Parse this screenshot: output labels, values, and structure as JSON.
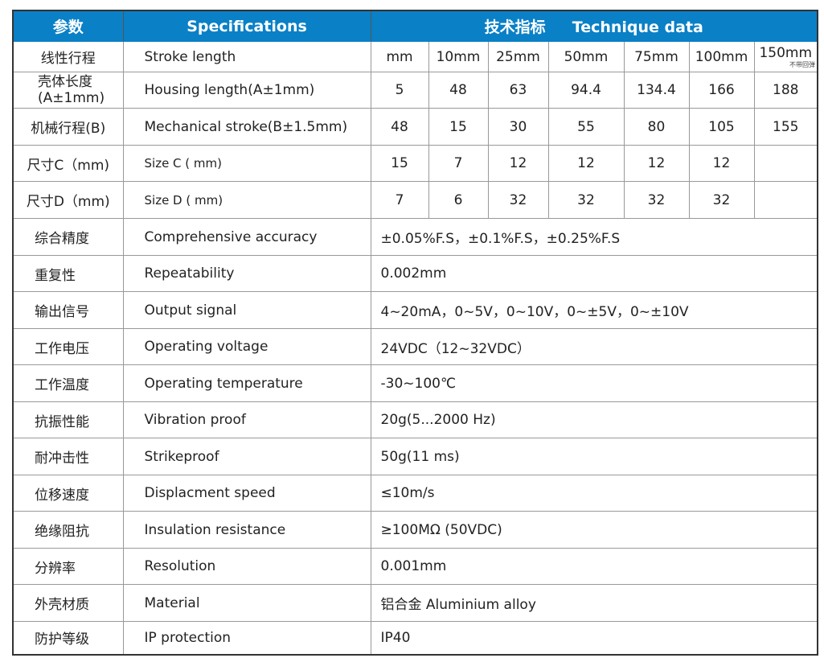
{
  "header": {
    "col1": "参数",
    "col2": "Specifications",
    "col3a": "技术指标",
    "col3b": "Technique data"
  },
  "colors": {
    "header_bg": "#0a80c6",
    "header_text": "#ffffff"
  },
  "stroke_row": {
    "cn": "线性行程",
    "en": "Stroke length",
    "values": [
      "mm",
      "10mm",
      "25mm",
      "50mm",
      "75mm",
      "100mm",
      "150mm"
    ],
    "note": "不带回弹"
  },
  "size_rows": [
    {
      "cn": "壳体长度",
      "cn2": "(A±1mm)",
      "en": "Housing length(A±1mm)",
      "values": [
        "5",
        "48",
        "63",
        "94.4",
        "134.4",
        "166",
        "188"
      ]
    },
    {
      "cn": "机械行程(B)",
      "en": "Mechanical stroke(B±1.5mm)",
      "values": [
        "48",
        "15",
        "30",
        "55",
        "80",
        "105",
        "155"
      ]
    },
    {
      "cn": "尺寸C（mm)",
      "en": "Size C ( mm)",
      "values": [
        "15",
        "7",
        "12",
        "12",
        "12",
        "12",
        ""
      ]
    },
    {
      "cn": "尺寸D（mm)",
      "en": "Size D ( mm)",
      "values": [
        "7",
        "6",
        "32",
        "32",
        "32",
        "32",
        ""
      ]
    }
  ],
  "spec_rows": [
    {
      "cn": "综合精度",
      "en": "Comprehensive accuracy",
      "value": "±0.05%F.S，±0.1%F.S，±0.25%F.S"
    },
    {
      "cn": "重复性",
      "en": "Repeatability",
      "value": "0.002mm"
    },
    {
      "cn": "输出信号",
      "en": "Output signal",
      "value": "4~20mA，0~5V，0~10V，0~±5V，0~±10V"
    },
    {
      "cn": "工作电压",
      "en": "Operating voltage",
      "value": "24VDC（12~32VDC）"
    },
    {
      "cn": "工作温度",
      "en": "Operating temperature",
      "value": "-30~100℃"
    },
    {
      "cn": "抗振性能",
      "en": "Vibration proof",
      "value": "20g(5...2000 Hz)"
    },
    {
      "cn": "耐冲击性",
      "en": "Strikeproof",
      "value": "50g(11 ms)"
    },
    {
      "cn": "位移速度",
      "en": "Displacment speed",
      "value": "≤10m/s"
    },
    {
      "cn": "绝缘阻抗",
      "en": "Insulation resistance",
      "value": "≥100MΩ (50VDC)"
    },
    {
      "cn": "分辨率",
      "en": "Resolution",
      "value": "0.001mm"
    },
    {
      "cn": "外壳材质",
      "en": "Material",
      "value": "铝合金  Aluminium alloy"
    },
    {
      "cn": "防护等级",
      "en": "IP protection",
      "value": "IP40"
    }
  ]
}
